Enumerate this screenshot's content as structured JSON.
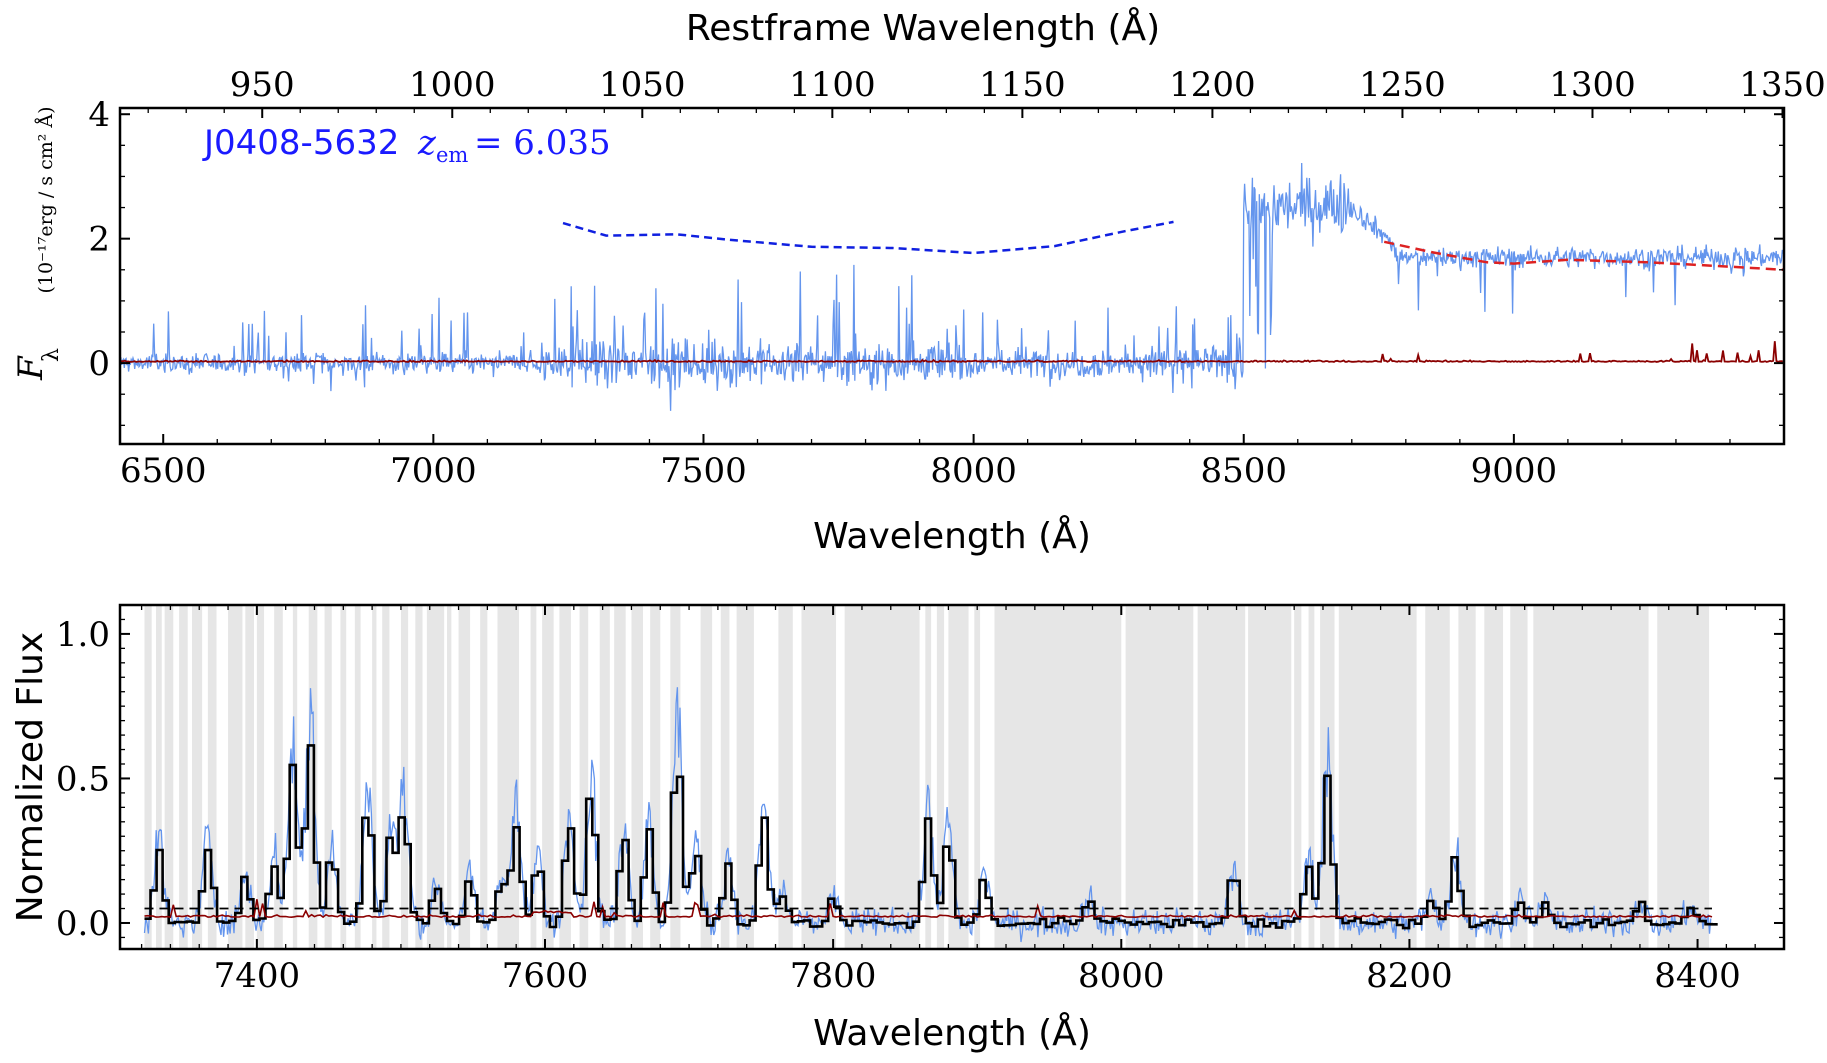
{
  "chart_data": [
    {
      "type": "line",
      "panel": "top",
      "annotation": {
        "object": "J0408-5632",
        "redshift_label": "z",
        "redshift_sub": "em",
        "redshift_value": "= 6.035"
      },
      "xlabel": "Wavelength (Å)",
      "xlabel_top": "Restframe Wavelength (Å)",
      "ylabel_symbol": "F",
      "ylabel_sub": "λ",
      "ylabel_units": "(10⁻¹⁷erg / s cm² Å)",
      "xlim": [
        6420,
        9500
      ],
      "ylim": [
        -1.3,
        4.1
      ],
      "xticks": [
        6500,
        7000,
        7500,
        8000,
        8500,
        9000
      ],
      "yticks": [
        0,
        2,
        4
      ],
      "xticks_top": [
        950,
        1000,
        1050,
        1100,
        1150,
        1200,
        1250,
        1300,
        1350
      ],
      "zem": 6.035,
      "series": [
        {
          "role": "flux",
          "color": "#6495ED",
          "regions": [
            {
              "x0": 6420,
              "x1": 7200,
              "level": 0.0,
              "noise": 0.12,
              "spikes": 0.9
            },
            {
              "x0": 7200,
              "x1": 7950,
              "level": 0.0,
              "noise": 0.25,
              "spikes": 1.6
            },
            {
              "x0": 7950,
              "x1": 8500,
              "level": 0.0,
              "noise": 0.18,
              "spikes": 0.8
            },
            {
              "x0": 8500,
              "x1": 8700,
              "level": 2.5,
              "noise": 0.35,
              "spikes": 0.0
            },
            {
              "x0": 8700,
              "x1": 9500,
              "level": 1.7,
              "noise": 0.12,
              "spikes": 0.0
            }
          ]
        },
        {
          "role": "error",
          "color": "#8B0000"
        },
        {
          "role": "continuum-fit",
          "color": "#DD2222",
          "x": [
            8760,
            8850,
            8950,
            9000,
            9100,
            9250,
            9400,
            9500
          ],
          "y": [
            1.95,
            1.78,
            1.62,
            1.6,
            1.66,
            1.62,
            1.55,
            1.5
          ]
        },
        {
          "role": "continuum-prediction",
          "color": "#1020E0",
          "x": [
            7240,
            7320,
            7450,
            7550,
            7700,
            7850,
            8000,
            8150,
            8280,
            8370
          ],
          "y": [
            2.25,
            2.05,
            2.07,
            1.98,
            1.87,
            1.85,
            1.77,
            1.88,
            2.12,
            2.27
          ]
        }
      ]
    },
    {
      "type": "line",
      "panel": "bottom",
      "xlabel": "Wavelength (Å)",
      "ylabel": "Normalized Flux",
      "xlim": [
        7305,
        8460
      ],
      "ylim": [
        -0.09,
        1.1
      ],
      "xticks": [
        7400,
        7600,
        7800,
        8000,
        8200,
        8400
      ],
      "yticks": [
        0.0,
        0.5,
        1.0
      ],
      "threshold": 0.05,
      "masked_regions": [
        [
          7322,
          7327
        ],
        [
          7330,
          7334
        ],
        [
          7336,
          7342
        ],
        [
          7346,
          7352
        ],
        [
          7355,
          7362
        ],
        [
          7366,
          7372
        ],
        [
          7380,
          7390
        ],
        [
          7392,
          7398
        ],
        [
          7400,
          7405
        ],
        [
          7412,
          7418
        ],
        [
          7425,
          7428
        ],
        [
          7436,
          7442
        ],
        [
          7447,
          7452
        ],
        [
          7458,
          7462
        ],
        [
          7468,
          7472
        ],
        [
          7480,
          7483
        ],
        [
          7487,
          7492
        ],
        [
          7500,
          7505
        ],
        [
          7510,
          7515
        ],
        [
          7518,
          7530
        ],
        [
          7532,
          7535
        ],
        [
          7540,
          7548
        ],
        [
          7555,
          7560
        ],
        [
          7567,
          7582
        ],
        [
          7590,
          7594
        ],
        [
          7598,
          7606
        ],
        [
          7610,
          7618
        ],
        [
          7624,
          7630
        ],
        [
          7638,
          7645
        ],
        [
          7648,
          7656
        ],
        [
          7660,
          7668
        ],
        [
          7673,
          7680
        ],
        [
          7687,
          7694
        ],
        [
          7708,
          7716
        ],
        [
          7722,
          7728
        ],
        [
          7733,
          7745
        ],
        [
          7762,
          7772
        ],
        [
          7778,
          7802
        ],
        [
          7808,
          7860
        ],
        [
          7864,
          7868
        ],
        [
          7872,
          7877
        ],
        [
          7880,
          7894
        ],
        [
          7898,
          7902
        ],
        [
          7912,
          8000
        ],
        [
          8003,
          8050
        ],
        [
          8053,
          8086
        ],
        [
          8088,
          8118
        ],
        [
          8120,
          8125
        ],
        [
          8130,
          8134
        ],
        [
          8138,
          8148
        ],
        [
          8151,
          8205
        ],
        [
          8211,
          8228
        ],
        [
          8234,
          8246
        ],
        [
          8252,
          8265
        ],
        [
          8270,
          8282
        ],
        [
          8286,
          8366
        ],
        [
          8372,
          8408
        ]
      ],
      "transmission_peaks": [
        [
          7332,
          0.25
        ],
        [
          7366,
          0.26
        ],
        [
          7392,
          0.15
        ],
        [
          7412,
          0.2
        ],
        [
          7425,
          0.55
        ],
        [
          7437,
          0.62
        ],
        [
          7452,
          0.25
        ],
        [
          7477,
          0.4
        ],
        [
          7493,
          0.3
        ],
        [
          7502,
          0.4
        ],
        [
          7525,
          0.12
        ],
        [
          7548,
          0.15
        ],
        [
          7570,
          0.15
        ],
        [
          7580,
          0.35
        ],
        [
          7595,
          0.2
        ],
        [
          7617,
          0.35
        ],
        [
          7632,
          0.45
        ],
        [
          7655,
          0.3
        ],
        [
          7672,
          0.32
        ],
        [
          7692,
          0.6
        ],
        [
          7705,
          0.25
        ],
        [
          7727,
          0.2
        ],
        [
          7752,
          0.38
        ],
        [
          7765,
          0.1
        ],
        [
          7800,
          0.08
        ],
        [
          7866,
          0.35
        ],
        [
          7880,
          0.3
        ],
        [
          7905,
          0.15
        ],
        [
          7977,
          0.08
        ],
        [
          8078,
          0.18
        ],
        [
          8130,
          0.2
        ],
        [
          8143,
          0.5
        ],
        [
          8215,
          0.08
        ],
        [
          8232,
          0.22
        ],
        [
          8277,
          0.08
        ],
        [
          8295,
          0.07
        ],
        [
          8360,
          0.07
        ],
        [
          8395,
          0.05
        ]
      ],
      "series": [
        {
          "role": "normalized-flux",
          "color": "#6495ED"
        },
        {
          "role": "binned-flux",
          "color": "#000000"
        },
        {
          "role": "error",
          "color": "#8B0000"
        }
      ]
    }
  ]
}
